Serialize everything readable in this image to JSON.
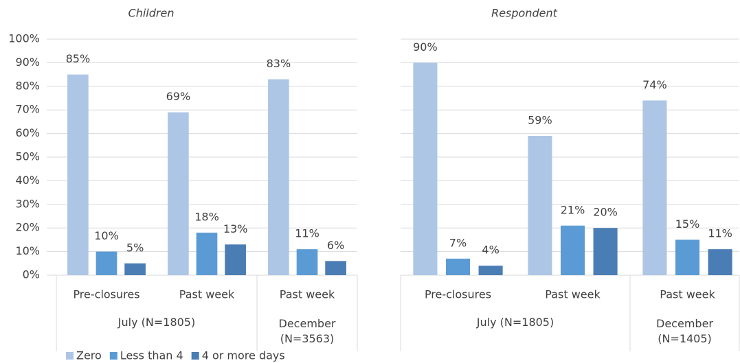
{
  "chart_data": [
    {
      "type": "bar",
      "title": "Children",
      "categories": [
        "Pre-closures",
        "Past week",
        "Past week"
      ],
      "groups": [
        {
          "label": "July (N=1805)",
          "span": 2
        },
        {
          "label": "December (N=3563)",
          "span": 1
        }
      ],
      "series": [
        {
          "name": "Zero",
          "color": "#adc6e6",
          "values": [
            85,
            69,
            83
          ],
          "value_labels": [
            "85%",
            "69%",
            "83%"
          ]
        },
        {
          "name": "Less than 4",
          "color": "#5b9bd5",
          "values": [
            10,
            18,
            11
          ],
          "value_labels": [
            "10%",
            "18%",
            "11%"
          ]
        },
        {
          "name": "4 or more days",
          "color": "#4a7db4",
          "values": [
            5,
            13,
            6
          ],
          "value_labels": [
            "5%",
            "13%",
            "6%"
          ]
        }
      ],
      "ylim": [
        0,
        100
      ],
      "yticks": [
        {
          "value": 0,
          "label": "0%"
        },
        {
          "value": 10,
          "label": "10%"
        },
        {
          "value": 20,
          "label": "20%"
        },
        {
          "value": 30,
          "label": "30%"
        },
        {
          "value": 40,
          "label": "40%"
        },
        {
          "value": 50,
          "label": "50%"
        },
        {
          "value": 60,
          "label": "60%"
        },
        {
          "value": 70,
          "label": "70%"
        },
        {
          "value": 80,
          "label": "80%"
        },
        {
          "value": 90,
          "label": "90%"
        },
        {
          "value": 100,
          "label": "100%"
        }
      ],
      "grid": true,
      "legend": "bottom-left"
    },
    {
      "type": "bar",
      "title": "Respondent",
      "categories": [
        "Pre-closures",
        "Past week",
        "Past week"
      ],
      "groups": [
        {
          "label": "July (N=1805)",
          "span": 2
        },
        {
          "label": "December (N=1405)",
          "span": 1
        }
      ],
      "series": [
        {
          "color": "#adc6e6",
          "values": [
            90,
            59,
            74
          ],
          "value_labels": [
            "90%",
            "59%",
            "74%"
          ]
        },
        {
          "color": "#5b9bd5",
          "values": [
            7,
            21,
            15
          ],
          "value_labels": [
            "7%",
            "21%",
            "15%"
          ]
        },
        {
          "color": "#4a7db4",
          "values": [
            4,
            20,
            11
          ],
          "value_labels": [
            "4%",
            "20%",
            "11%"
          ]
        }
      ],
      "ylim": [
        0,
        100
      ],
      "yticks": [
        0,
        10,
        20,
        30,
        40,
        50,
        60,
        70,
        80,
        90,
        100
      ],
      "y_axis_labels": false,
      "grid": true
    }
  ]
}
